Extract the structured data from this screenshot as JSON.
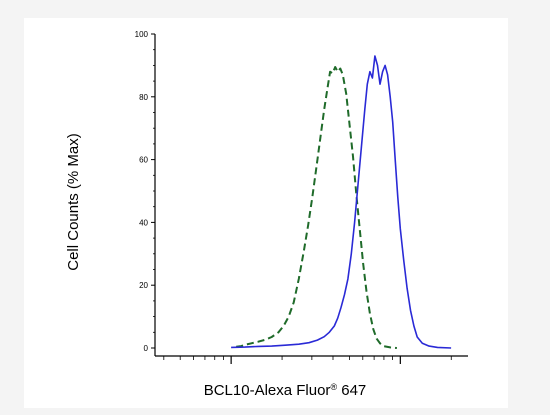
{
  "chart_data": {
    "type": "line",
    "xlabel": {
      "main": "BCL10-Alexa Fluor",
      "reg": "®",
      "suffix": " 647"
    },
    "ylabel": "Cell Counts (% Max)",
    "yticks": [
      "0",
      "20",
      "40",
      "60",
      "80",
      "100"
    ],
    "ylim": [
      0,
      100
    ],
    "x_scale": "log",
    "x_ticks_shown_unlabeled": true,
    "grid": false,
    "series": [
      {
        "style": "dashed",
        "color": "#1f6b2a",
        "points": [
          [
            0.03,
            0.4
          ],
          [
            0.06,
            0.6
          ],
          [
            0.08,
            1.0
          ],
          [
            0.12,
            1.5
          ],
          [
            0.16,
            2.0
          ],
          [
            0.2,
            2.6
          ],
          [
            0.24,
            3.5
          ],
          [
            0.28,
            5.0
          ],
          [
            0.31,
            7.0
          ],
          [
            0.34,
            10.0
          ],
          [
            0.37,
            14.5
          ],
          [
            0.4,
            22.0
          ],
          [
            0.43,
            31.0
          ],
          [
            0.455,
            39.0
          ],
          [
            0.48,
            48.0
          ],
          [
            0.505,
            58.0
          ],
          [
            0.53,
            68.0
          ],
          [
            0.55,
            76.0
          ],
          [
            0.57,
            83.0
          ],
          [
            0.585,
            88.0
          ],
          [
            0.6,
            87.5
          ],
          [
            0.615,
            89.5
          ],
          [
            0.63,
            88.0
          ],
          [
            0.645,
            89.0
          ],
          [
            0.66,
            87.0
          ],
          [
            0.68,
            81.0
          ],
          [
            0.7,
            71.0
          ],
          [
            0.72,
            61.0
          ],
          [
            0.74,
            49.0
          ],
          [
            0.76,
            38.0
          ],
          [
            0.78,
            27.0
          ],
          [
            0.8,
            18.0
          ],
          [
            0.82,
            11.0
          ],
          [
            0.84,
            6.0
          ],
          [
            0.86,
            3.0
          ],
          [
            0.88,
            1.5
          ],
          [
            0.9,
            0.6
          ],
          [
            0.94,
            0.2
          ],
          [
            0.98,
            0.0
          ]
        ]
      },
      {
        "style": "solid",
        "color": "#2a2ad6",
        "points": [
          [
            0.0,
            0.2
          ],
          [
            0.08,
            0.3
          ],
          [
            0.16,
            0.5
          ],
          [
            0.24,
            0.6
          ],
          [
            0.32,
            0.9
          ],
          [
            0.4,
            1.2
          ],
          [
            0.46,
            1.7
          ],
          [
            0.51,
            2.5
          ],
          [
            0.55,
            3.6
          ],
          [
            0.58,
            5.0
          ],
          [
            0.61,
            7.0
          ],
          [
            0.63,
            9.5
          ],
          [
            0.65,
            13.0
          ],
          [
            0.67,
            17.0
          ],
          [
            0.69,
            22.0
          ],
          [
            0.71,
            30.0
          ],
          [
            0.73,
            40.0
          ],
          [
            0.75,
            52.0
          ],
          [
            0.77,
            64.0
          ],
          [
            0.79,
            76.0
          ],
          [
            0.805,
            84.0
          ],
          [
            0.82,
            88.0
          ],
          [
            0.835,
            86.0
          ],
          [
            0.85,
            93.0
          ],
          [
            0.865,
            90.0
          ],
          [
            0.88,
            84.0
          ],
          [
            0.895,
            88.0
          ],
          [
            0.91,
            90.0
          ],
          [
            0.925,
            87.0
          ],
          [
            0.94,
            80.0
          ],
          [
            0.955,
            72.0
          ],
          [
            0.97,
            60.0
          ],
          [
            0.985,
            48.0
          ],
          [
            1.0,
            38.0
          ],
          [
            1.02,
            28.0
          ],
          [
            1.04,
            19.0
          ],
          [
            1.06,
            12.0
          ],
          [
            1.08,
            7.0
          ],
          [
            1.1,
            3.5
          ],
          [
            1.13,
            1.5
          ],
          [
            1.17,
            0.6
          ],
          [
            1.22,
            0.2
          ],
          [
            1.3,
            0.0
          ]
        ]
      }
    ]
  }
}
